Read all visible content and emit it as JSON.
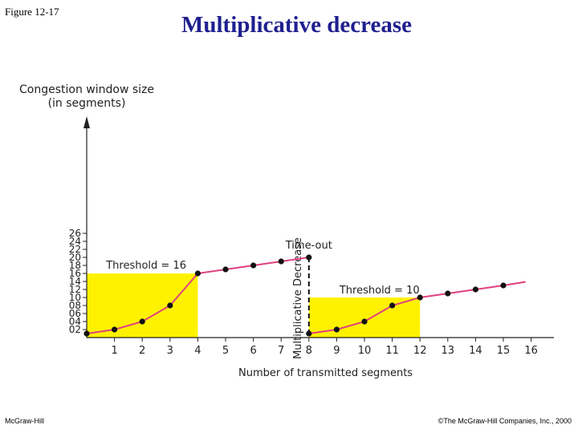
{
  "figure_label": "Figure 12-17",
  "slide_title": "Multiplicative decrease",
  "footer": {
    "publisher": "McGraw-Hill",
    "copyright": "©The McGraw-Hill Companies, Inc., 2000"
  },
  "colors": {
    "title": "#1f1f8f",
    "line": "#e0407f",
    "point": "#111111",
    "highlight": "#fff200"
  },
  "chart_data": {
    "type": "line",
    "ylabel_lines": [
      "Congestion window size",
      "(in segments)"
    ],
    "xlabel": "Number of transmitted segments",
    "y_ticks": [
      "02",
      "04",
      "06",
      "08",
      "10",
      "12",
      "14",
      "16",
      "18",
      "20",
      "22",
      "24",
      "26"
    ],
    "x_ticks": [
      "1",
      "2",
      "3",
      "4",
      "5",
      "6",
      "7",
      "8",
      "9",
      "10",
      "11",
      "12",
      "13",
      "14",
      "15",
      "16"
    ],
    "xlim": [
      0,
      16.5
    ],
    "ylim": [
      0,
      28
    ],
    "series": [
      {
        "x": [
          0,
          1,
          2,
          3,
          4,
          5,
          6,
          7,
          8
        ],
        "values": [
          1,
          2,
          4,
          8,
          16,
          17,
          18,
          19,
          20
        ]
      },
      {
        "x": [
          8,
          9,
          10,
          11,
          12,
          13,
          14,
          15,
          15.8
        ],
        "values": [
          1,
          2,
          4,
          8,
          10,
          11,
          12,
          13,
          13.9
        ]
      }
    ],
    "markers_per_series": [
      9,
      8
    ],
    "highlight_regions": [
      {
        "x": [
          0,
          4
        ],
        "y": [
          0,
          16
        ],
        "label": "Threshold = 16"
      },
      {
        "x": [
          8,
          12
        ],
        "y": [
          0,
          10
        ],
        "label": "Threshold = 10"
      }
    ],
    "drop": {
      "x": 8,
      "from": 20,
      "to": 1,
      "top_label": "Time-out",
      "side_label": "Multiplicative Decrease"
    }
  }
}
